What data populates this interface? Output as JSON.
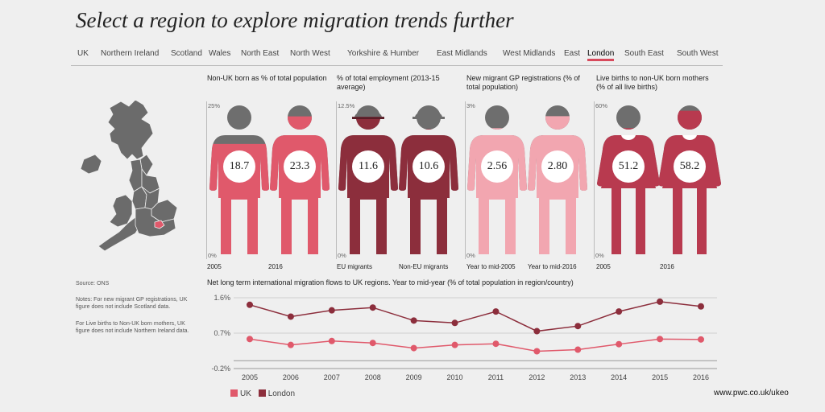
{
  "title": "Select a region to explore migration trends further",
  "tabs": [
    "UK",
    "Northern Ireland",
    "Scotland",
    "Wales",
    "North East",
    "North West",
    "Yorkshire & Humber",
    "East Midlands",
    "West Midlands",
    "East",
    "London",
    "South East",
    "South West"
  ],
  "active_tab": "London",
  "colors": {
    "uk": "#e0596b",
    "london": "#8c2e3c",
    "gp": "#f2a6b0",
    "births": "#b83a4f",
    "grey": "#6e6e6e"
  },
  "panels": [
    {
      "title": "Non-UK born as % of total population",
      "max_label": "25%",
      "min_label": "0%",
      "max": 25,
      "items": [
        {
          "label": "2005",
          "value": 18.7
        },
        {
          "label": "2016",
          "value": 23.3
        }
      ]
    },
    {
      "title": "% of total employment (2013-15 average)",
      "max_label": "12.5%",
      "min_label": "0%",
      "max": 12.5,
      "items": [
        {
          "label": "EU migrants",
          "value": 11.6
        },
        {
          "label": "Non-EU migrants",
          "value": 10.6
        }
      ]
    },
    {
      "title": "New migrant GP registrations (% of total population)",
      "max_label": "3%",
      "min_label": "0%",
      "max": 3,
      "items": [
        {
          "label": "Year to mid-2005",
          "value": 2.56
        },
        {
          "label": "Year to mid-2016",
          "value": 2.8
        }
      ]
    },
    {
      "title": "Live births to non-UK born mothers (% of all live births)",
      "max_label": "60%",
      "min_label": "0%",
      "max": 60,
      "items": [
        {
          "label": "2005",
          "value": 51.2
        },
        {
          "label": "2016",
          "value": 58.2
        }
      ]
    }
  ],
  "source": "Source: ONS",
  "notes": [
    "Notes: For new migrant GP registrations, UK figure does not include Scotland data.",
    "For Live births to Non-UK born mothers, UK figure does not include Northern Ireland data."
  ],
  "chart_data": {
    "type": "line",
    "title": "Net long term international migration flows to UK regions. Year to mid-year (% of total population in region/country)",
    "x": [
      "2005",
      "2006",
      "2007",
      "2008",
      "2009",
      "2010",
      "2011",
      "2012",
      "2013",
      "2014",
      "2015",
      "2016"
    ],
    "series": [
      {
        "name": "UK",
        "color": "#e0596b",
        "values": [
          0.55,
          0.4,
          0.5,
          0.45,
          0.32,
          0.4,
          0.43,
          0.24,
          0.28,
          0.42,
          0.55,
          0.54
        ]
      },
      {
        "name": "London",
        "color": "#8c2e3c",
        "values": [
          1.42,
          1.12,
          1.28,
          1.35,
          1.02,
          0.96,
          1.25,
          0.75,
          0.88,
          1.25,
          1.5,
          1.38
        ]
      }
    ],
    "yticks": [
      {
        "v": 1.6,
        "label": "1.6%"
      },
      {
        "v": 0.7,
        "label": "0.7%"
      },
      {
        "v": -0.2,
        "label": "-0.2%"
      }
    ],
    "ylim": [
      -0.2,
      1.6
    ],
    "grid": true
  },
  "footer": "www.pwc.co.uk/ukeo"
}
